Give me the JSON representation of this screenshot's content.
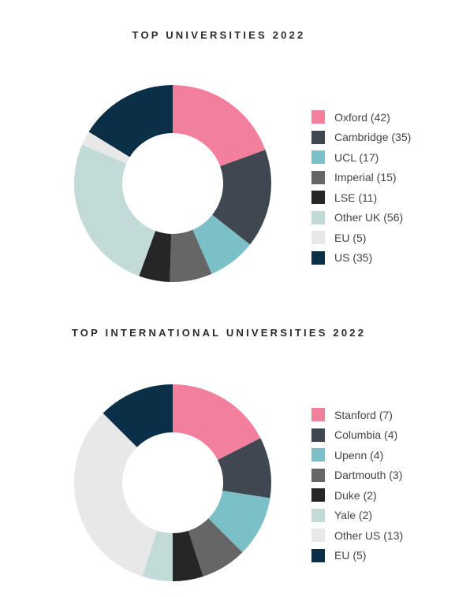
{
  "chart_data": [
    {
      "type": "pie",
      "title": "TOP UNIVERSITIES 2022",
      "legend_position": "right",
      "categories": [
        "Oxford",
        "Cambridge",
        "UCL",
        "Imperial",
        "LSE",
        "Other UK",
        "EU",
        "US"
      ],
      "values": [
        42,
        35,
        17,
        15,
        11,
        56,
        5,
        35
      ],
      "legend_labels": [
        "Oxford (42)",
        "Cambridge (35)",
        "UCL (17)",
        "Imperial (15)",
        "LSE (11)",
        "Other UK (56)",
        "EU (5)",
        "US (35)"
      ],
      "colors": [
        "#f27f9c",
        "#3f4750",
        "#7bc0c6",
        "#666666",
        "#262626",
        "#c3dbd8",
        "#e8e8e8",
        "#0b2f47"
      ]
    },
    {
      "type": "pie",
      "title": "TOP INTERNATIONAL UNIVERSITIES 2022",
      "legend_position": "right",
      "categories": [
        "Stanford",
        "Columbia",
        "Upenn",
        "Dartmouth",
        "Duke",
        "Yale",
        "Other US",
        "EU"
      ],
      "values": [
        7,
        4,
        4,
        3,
        2,
        2,
        13,
        5
      ],
      "legend_labels": [
        "Stanford (7)",
        "Columbia (4)",
        "Upenn (4)",
        "Dartmouth (3)",
        "Duke (2)",
        "Yale (2)",
        "Other US (13)",
        "EU (5)"
      ],
      "colors": [
        "#f27f9c",
        "#3f4750",
        "#7bc0c6",
        "#666666",
        "#262626",
        "#c3dbd8",
        "#e8e8e8",
        "#0b2f47"
      ]
    }
  ]
}
